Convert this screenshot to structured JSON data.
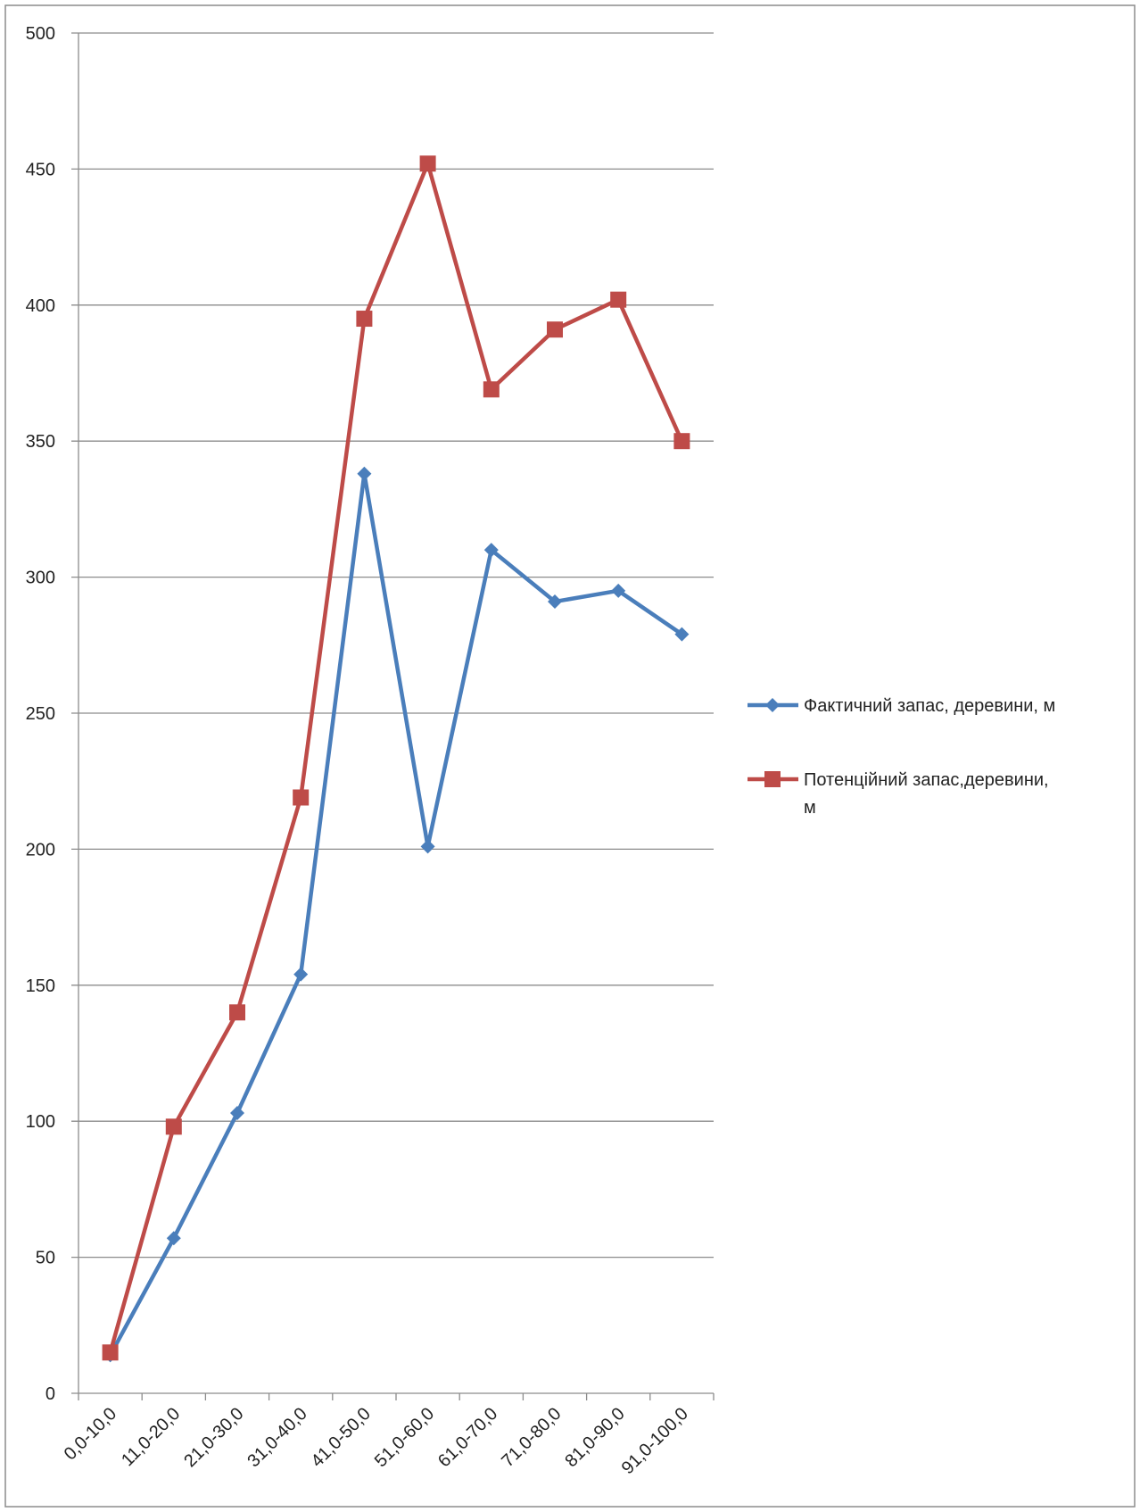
{
  "chart_data": {
    "type": "line",
    "categories": [
      "0,0-10,0",
      "11,0-20,0",
      "21,0-30,0",
      "31,0-40,0",
      "41,0-50,0",
      "51,0-60,0",
      "61,0-70,0",
      "71,0-80,0",
      "81,0-90,0",
      "91,0-100,0"
    ],
    "series": [
      {
        "name": "Фактичний запас, деревини, м",
        "values": [
          14,
          57,
          103,
          154,
          338,
          201,
          310,
          291,
          295,
          279
        ],
        "color": "#4A7EBB",
        "marker": "diamond"
      },
      {
        "name_lines": [
          "Потенційний запас,деревини,",
          "м"
        ],
        "values": [
          15,
          98,
          140,
          219,
          395,
          452,
          369,
          391,
          402,
          350
        ],
        "color": "#BE4B48",
        "marker": "square"
      }
    ],
    "yticks": [
      "0",
      "50",
      "100",
      "150",
      "200",
      "250",
      "300",
      "350",
      "400",
      "450",
      "500"
    ],
    "ylim": [
      0,
      500
    ],
    "grid": "horizontal",
    "legend_position": "right"
  }
}
